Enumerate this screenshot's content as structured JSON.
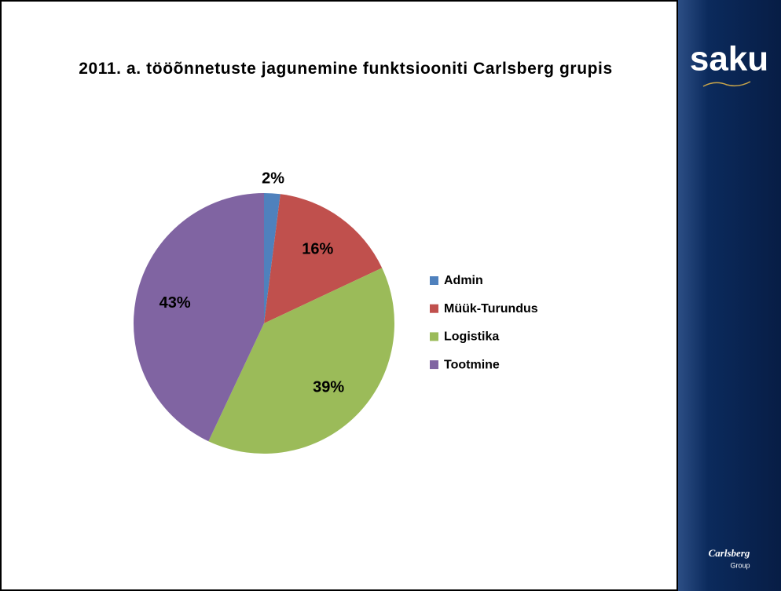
{
  "chart_data": {
    "type": "pie",
    "title": "2011. a. tööõnnetuste jagunemine funktsiooniti Carlsberg grupis",
    "categories": [
      "Admin",
      "Müük-Turundus",
      "Logistika",
      "Tootmine"
    ],
    "values": [
      2,
      16,
      39,
      43
    ],
    "value_labels": [
      "2%",
      "16%",
      "39%",
      "43%"
    ],
    "colors": [
      "#4f81bd",
      "#c0504d",
      "#9bbb59",
      "#8064a2"
    ],
    "legend": "right"
  },
  "logos": {
    "saku": "saku",
    "carlsberg": "Carlsberg",
    "group": "Group"
  }
}
